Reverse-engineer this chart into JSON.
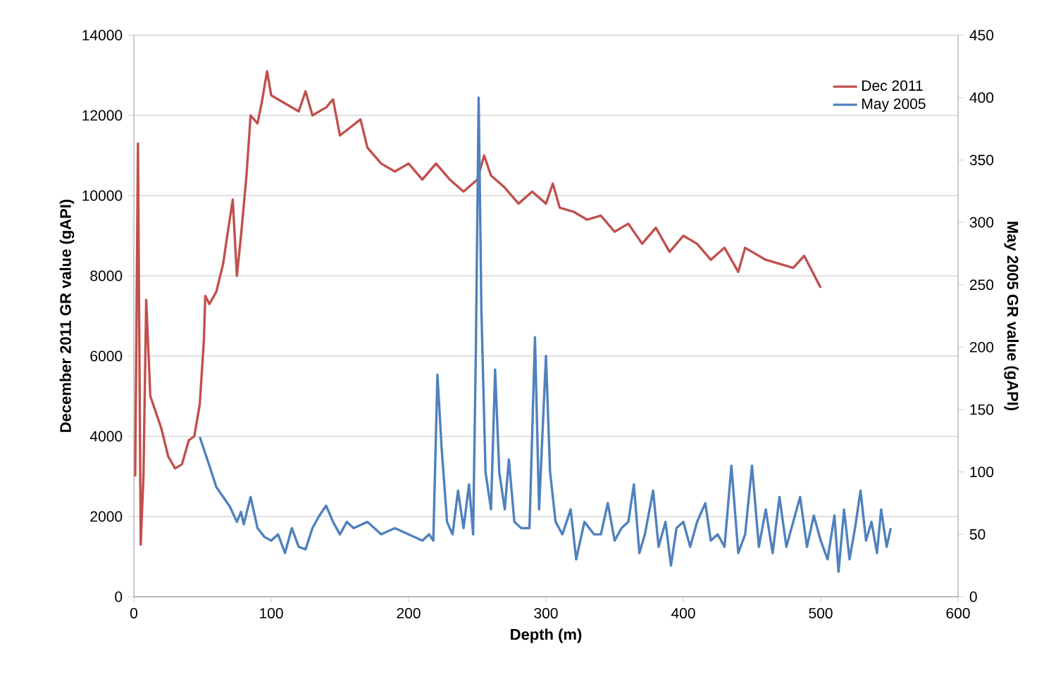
{
  "chart_data": {
    "type": "line",
    "xlabel": "Depth (m)",
    "ylabel": "December 2011 GR value (gAPI)",
    "y2label": "May 2005 GR value (gAPI)",
    "xlim": [
      0,
      600
    ],
    "xticks": [
      0,
      100,
      200,
      300,
      400,
      500,
      600
    ],
    "ylim": [
      0,
      14000
    ],
    "yticks": [
      0,
      2000,
      4000,
      6000,
      8000,
      10000,
      12000,
      14000
    ],
    "y2lim": [
      0,
      450
    ],
    "y2ticks": [
      0,
      50,
      100,
      150,
      200,
      250,
      300,
      350,
      400,
      450
    ],
    "grid": "y",
    "legend": "top right",
    "series": [
      {
        "name": "Dec 2011",
        "color": "#c0504d",
        "x": [
          1,
          3,
          5,
          7,
          9,
          12,
          17,
          20,
          25,
          30,
          35,
          40,
          44,
          48,
          51,
          52,
          55,
          60,
          65,
          68,
          72,
          75,
          78,
          82,
          85,
          90,
          93,
          97,
          100,
          110,
          120,
          125,
          130,
          140,
          145,
          150,
          165,
          170,
          180,
          190,
          200,
          210,
          220,
          230,
          240,
          250,
          255,
          260,
          270,
          280,
          290,
          300,
          305,
          310,
          320,
          330,
          340,
          350,
          360,
          370,
          380,
          390,
          400,
          410,
          420,
          430,
          440,
          445,
          460,
          470,
          480,
          488,
          500
        ],
        "values": [
          3000,
          11300,
          1300,
          3000,
          7400,
          5000,
          4500,
          4200,
          3500,
          3200,
          3300,
          3900,
          4000,
          4800,
          6400,
          7500,
          7300,
          7600,
          8300,
          9000,
          9900,
          8000,
          9000,
          10500,
          12000,
          11800,
          12300,
          13100,
          12500,
          12300,
          12100,
          12600,
          12000,
          12200,
          12400,
          11500,
          11900,
          11200,
          10800,
          10600,
          10800,
          10400,
          10800,
          10400,
          10100,
          10400,
          11000,
          10500,
          10200,
          9800,
          10100,
          9800,
          10300,
          9700,
          9600,
          9400,
          9500,
          9100,
          9300,
          8800,
          9200,
          8600,
          9000,
          8800,
          8400,
          8700,
          8100,
          8700,
          8400,
          8300,
          8200,
          8500,
          7700
        ]
      },
      {
        "name": "May 2005",
        "color": "#4f81bd",
        "axis": "y2",
        "x": [
          48,
          55,
          60,
          65,
          70,
          75,
          78,
          80,
          85,
          90,
          95,
          100,
          105,
          110,
          115,
          120,
          125,
          130,
          135,
          140,
          145,
          150,
          155,
          160,
          170,
          180,
          190,
          200,
          210,
          215,
          218,
          221,
          224,
          228,
          232,
          236,
          240,
          244,
          247,
          249,
          251,
          253,
          256,
          260,
          263,
          266,
          270,
          273,
          277,
          282,
          288,
          292,
          295,
          300,
          303,
          307,
          312,
          318,
          322,
          328,
          335,
          340,
          345,
          350,
          355,
          360,
          364,
          368,
          372,
          378,
          382,
          387,
          391,
          395,
          400,
          405,
          410,
          416,
          420,
          425,
          430,
          435,
          440,
          445,
          450,
          455,
          460,
          465,
          470,
          475,
          480,
          485,
          490,
          495,
          500,
          505,
          510,
          513,
          517,
          521,
          525,
          529,
          533,
          537,
          541,
          544,
          548,
          551
        ],
        "values": [
          128,
          105,
          88,
          80,
          72,
          60,
          68,
          58,
          80,
          55,
          48,
          45,
          50,
          35,
          55,
          40,
          38,
          55,
          65,
          73,
          60,
          50,
          60,
          55,
          60,
          50,
          55,
          50,
          45,
          50,
          45,
          178,
          120,
          60,
          50,
          85,
          55,
          90,
          50,
          200,
          400,
          230,
          100,
          70,
          182,
          100,
          70,
          110,
          60,
          55,
          55,
          208,
          70,
          193,
          100,
          60,
          50,
          70,
          30,
          60,
          50,
          50,
          75,
          45,
          55,
          60,
          90,
          35,
          50,
          85,
          40,
          60,
          25,
          55,
          60,
          40,
          60,
          75,
          45,
          50,
          40,
          105,
          35,
          50,
          105,
          40,
          70,
          35,
          80,
          40,
          60,
          80,
          40,
          65,
          45,
          30,
          65,
          20,
          70,
          30,
          55,
          85,
          45,
          60,
          35,
          70,
          40,
          55
        ]
      }
    ]
  }
}
